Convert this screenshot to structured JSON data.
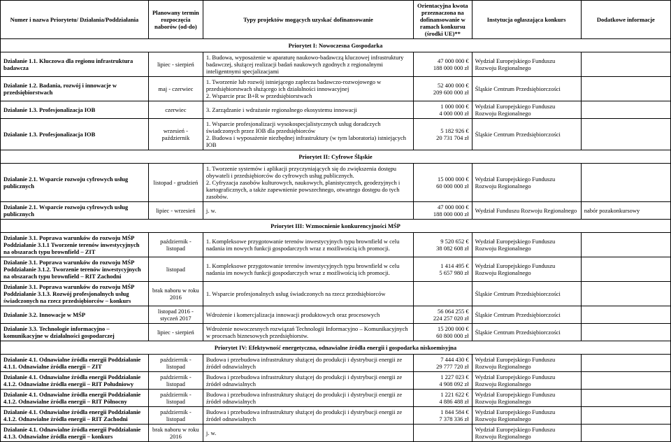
{
  "headers": {
    "name": "Numer i nazwa Priorytetu/ Działania/Poddziałania",
    "term": "Planowany termin rozpoczęcia naborów (od-do)",
    "type": "Typy projektów mogących uzyskać dofinansowanie",
    "amount": "Orientacyjna kwota przeznaczona na dofinansowanie w ramach konkursu (środki UE)**",
    "inst": "Instytucja ogłaszająca konkurs",
    "info": "Dodatkowe informacje"
  },
  "priorities": [
    "Priorytet I: Nowoczesna Gospodarka",
    "Priorytet II: Cyfrowe Śląskie",
    "Priorytet III: Wzmocnienie konkurencyjności MŚP",
    "Priorytet IV: Efektywność energetyczna, odnawialne źródła energii i gospodarka niskoemisyjna"
  ],
  "rows": [
    {
      "p": 0,
      "name": "Działanie 1.1. Kluczowa dla regionu infrastruktura badawcza",
      "bold": true,
      "term": "lipiec - sierpień",
      "type": "1. Budowa, wyposażenie w aparaturę naukowo-badawczą kluczowej infrastruktury badawczej, służącej realizacji badań naukowych zgodnych z regionalnymi inteligentnymi specjalizacjami",
      "amount": "47 000 000 €\n188 000 000 zł",
      "inst": "Wydział Europejskiego Funduszu Rozwoju Regionalnego",
      "info": ""
    },
    {
      "p": 0,
      "name": "Działanie 1.2. Badania, rozwój i innowacje w przedsiębiorstwach",
      "bold": true,
      "term": "maj - czerwiec",
      "type": "1. Tworzenie lub rozwój istniejącego zaplecza badawczo-rozwojowego w przedsiębiorstwach służącego ich działalności innowacyjnej\n2. Wsparcie prac B+R w przedsiębiorstwach",
      "amount": "52 400 000 €\n209 600 000 zł",
      "inst": "Śląskie Centrum Przedsiębiorczości",
      "info": ""
    },
    {
      "p": 0,
      "name": "Działanie 1.3. Profesjonalizacja IOB",
      "bold": true,
      "term": "czerwiec",
      "type": "3. Zarządzanie i wdrażanie regionalnego ekosystemu innowacji",
      "amount": "1 000 000 €\n4 000 000 zł",
      "inst": "Wydział Europejskiego Funduszu Rozwoju Regionalnego",
      "info": ""
    },
    {
      "p": 0,
      "name": "Działanie 1.3. Profesjonalizacja IOB",
      "bold": true,
      "term": "wrzesień - październik",
      "type": "1. Wsparcie profesjonalizacji wysokospecjalistycznych usług doradczych świadczonych przez IOB dla przedsiębiorców\n2. Budowa i wyposażenie niezbędnej infrastruktury (w tym laboratoria) istniejących IOB",
      "amount": "5 182 926 €\n20 731 704 zł",
      "inst": "Śląskie Centrum Przedsiębiorczości",
      "info": ""
    },
    {
      "p": 1,
      "name": "Działanie 2.1. Wsparcie rozwoju cyfrowych usług publicznych",
      "bold": true,
      "term": "listopad - grudzień",
      "type": "1. Tworzenie systemów i aplikacji przyczyniających się do zwiększenia dostępu obywateli i przedsiębiorców do cyfrowych usług publicznych.\n2. Cyfryzacja zasobów kulturowych, naukowych, planistycznych, geodezyjnych i kartograficznych, a także zapewnienie powszechnego, otwartego dostępu do tych zasobów.",
      "amount": "15 000 000 €\n60 000 000 zł",
      "inst": "Wydział Europejskiego Funduszu Rozwoju Regionalnego",
      "info": ""
    },
    {
      "p": 1,
      "name": "Działanie 2.1. Wsparcie rozwoju cyfrowych usług publicznych",
      "bold": true,
      "term": "lipiec - wrzesień",
      "type": "j. w.",
      "amount": "47 000 000 €\n188 000 000 zł",
      "inst": "Wydział Funduszu Rozwoju Regionalnego",
      "info": "nabór pozakonkursowy"
    },
    {
      "p": 2,
      "name": "Działanie 3.1. Poprawa warunków do rozwoju MŚP Poddziałanie 3.1.1 Tworzenie terenów inwestycyjnych na obszarach typu brownfield – ZIT",
      "bold": true,
      "term": "październik - listopad",
      "type": "1. Kompleksowe przygotowanie terenów inwestycyjnych typu brownfield w celu nadania im nowych funkcji gospodarczych wraz z możliwością ich promocji.",
      "amount": "9 520 652 €\n38 082 608 zł",
      "inst": "Wydział Europejskiego Funduszu Rozwoju Regionalnego",
      "info": ""
    },
    {
      "p": 2,
      "name": "Działanie 3.1. Poprawa warunków do rozwoju MŚP Poddziałanie 3.1.2. Tworzenie terenów inwestycyjnych na obszarach typu brownfield – RIT Zachodni",
      "bold": true,
      "term": "listopad",
      "type": "1. Kompleksowe przygotowanie terenów inwestycyjnych typu brownfield w celu nadania im nowych funkcji gospodarczych wraz z możliwością ich promocji.",
      "amount": "1 414 495 €\n5 657 980 zł",
      "inst": "Wydział Europejskiego Funduszu Rozwoju Regionalnego",
      "info": ""
    },
    {
      "p": 2,
      "name": "Działanie 3.1. Poprawa warunków do rozwoju MŚP Poddziałanie 3.1.3. Rozwój profesjonalnych usług świadczonych na rzecz przedsiębiorców – konkurs",
      "bold": true,
      "term": "brak naboru w roku 2016",
      "type": "1. Wsparcie profesjonalnych usług świadczonych na rzecz przedsiębiorców",
      "amount": "",
      "inst": "Śląskie Centrum Przedsiębiorczości",
      "info": ""
    },
    {
      "p": 2,
      "name": "Działanie 3.2. Innowacje w MŚP",
      "bold": true,
      "term": "listopad 2016 - styczeń 2017",
      "type": "Wdrożenie i komercjalizacja innowacji produktowych oraz procesowych",
      "amount": "56 064 255 €\n224 257 020 zł",
      "inst": "Śląskie Centrum Przedsiębiorczości",
      "info": ""
    },
    {
      "p": 2,
      "name": "Działanie 3.3. Technologie informacyjno –komunikacyjne w działalności gospodarczej",
      "bold": true,
      "term": "lipiec - sierpień",
      "type": "Wdrożenie nowoczesnych rozwiązań Technologii Informacyjno – Komunikacyjnych w procesach biznesowych przedsiębiorstw.",
      "amount": "15 200 000 €\n60 800 000 zł",
      "inst": "Śląskie Centrum Przedsiębiorczości",
      "info": ""
    },
    {
      "p": 3,
      "name": "Działanie 4.1. Odnawialne źródła energii  Poddziałanie 4.1.1. Odnawialne źródła energii – ZIT",
      "bold": true,
      "term": "październik - listopad",
      "type": "Budowa i przebudowa infrastruktury służącej do produkcji i dystrybucji energii ze źródeł odnawialnych",
      "amount": "7 444 430 €\n29 777 720 zł",
      "inst": "Wydział Europejskiego Funduszu Rozwoju Regionalnego",
      "info": ""
    },
    {
      "p": 3,
      "name": "Działanie 4.1. Odnawialne źródła energii  Poddziałanie 4.1.2. Odnawialne źródła energii – RIT Południowy",
      "bold": true,
      "term": "październik - listopad",
      "type": "Budowa i przebudowa infrastruktury służącej do produkcji i dystrybucji energii ze źródeł odnawialnych",
      "amount": "1 227 023 €\n4 908 092 zł",
      "inst": "Wydział Europejskiego Funduszu Rozwoju Regionalnego",
      "info": ""
    },
    {
      "p": 3,
      "name": "Działanie 4.1. Odnawialne źródła energii  Poddziałanie 4.1.2. Odnawialne źródła energii – RIT Północny",
      "bold": true,
      "term": "październik - listopad",
      "type": "Budowa i przebudowa infrastruktury służącej do produkcji i dystrybucji energii ze źródeł odnawialnych",
      "amount": "1 221 622 €\n4 886 488 zł",
      "inst": "Wydział Europejskiego Funduszu Rozwoju Regionalnego",
      "info": ""
    },
    {
      "p": 3,
      "name": "Działanie 4.1. Odnawialne źródła energii  Poddziałanie 4.1.2. Odnawialne źródła energii – RIT Zachodni",
      "bold": true,
      "term": "październik - listopad",
      "type": "Budowa i przebudowa infrastruktury służącej do produkcji i dystrybucji energii ze źródeł odnawialnych",
      "amount": "1 844 584 €\n7 378 336 zł",
      "inst": "Wydział Europejskiego Funduszu Rozwoju Regionalnego",
      "info": ""
    },
    {
      "p": 3,
      "name": "Działanie 4.1. Odnawialne źródła energii  Poddziałanie 4.1.3. Odnawialne źródła energii – konkurs",
      "bold": true,
      "term": "brak naboru w roku 2016",
      "type": "j. w.",
      "amount": "",
      "inst": "Wydział Europejskiego Funduszu Rozwoju Regionalnego",
      "info": ""
    }
  ]
}
